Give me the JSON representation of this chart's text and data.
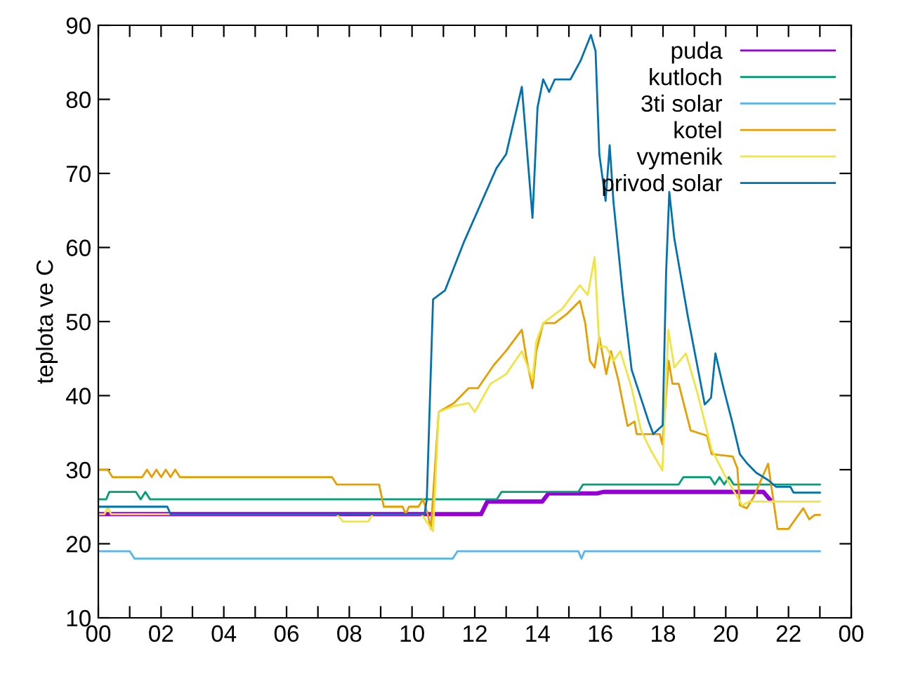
{
  "chart_data": {
    "type": "line",
    "ylabel": "teplota ve C",
    "xlim": [
      0,
      24
    ],
    "ylim": [
      10,
      90
    ],
    "xticks": [
      {
        "value": 0,
        "label": "00"
      },
      {
        "value": 1,
        "label": null
      },
      {
        "value": 2,
        "label": "02"
      },
      {
        "value": 3,
        "label": null
      },
      {
        "value": 4,
        "label": "04"
      },
      {
        "value": 5,
        "label": null
      },
      {
        "value": 6,
        "label": "06"
      },
      {
        "value": 7,
        "label": null
      },
      {
        "value": 8,
        "label": "08"
      },
      {
        "value": 9,
        "label": null
      },
      {
        "value": 10,
        "label": "10"
      },
      {
        "value": 11,
        "label": null
      },
      {
        "value": 12,
        "label": "12"
      },
      {
        "value": 13,
        "label": null
      },
      {
        "value": 14,
        "label": "14"
      },
      {
        "value": 15,
        "label": null
      },
      {
        "value": 16,
        "label": "16"
      },
      {
        "value": 17,
        "label": null
      },
      {
        "value": 18,
        "label": "18"
      },
      {
        "value": 19,
        "label": null
      },
      {
        "value": 20,
        "label": "20"
      },
      {
        "value": 21,
        "label": null
      },
      {
        "value": 22,
        "label": "22"
      },
      {
        "value": 23,
        "label": null
      },
      {
        "value": 24,
        "label": "00"
      }
    ],
    "yticks": [
      10,
      20,
      30,
      40,
      50,
      60,
      70,
      80,
      90
    ],
    "grid": false,
    "legend": "top right",
    "marker": "none",
    "line_style": "solid",
    "series": [
      {
        "name": "puda",
        "color": "#9400d3",
        "x": [
          0,
          12.2,
          12.4,
          14.15,
          14.35,
          15.9,
          16.1,
          21.2,
          21.4
        ],
        "values": [
          24,
          24,
          25.7,
          25.7,
          26.8,
          26.8,
          27,
          27,
          26
        ]
      },
      {
        "name": "kutloch",
        "color": "#009e73",
        "x": [
          0,
          0.25,
          0.35,
          1.2,
          1.35,
          1.5,
          1.65,
          12.7,
          12.85,
          15.3,
          15.45,
          18.5,
          18.65,
          19.5,
          19.65,
          19.8,
          19.95,
          20.1,
          20.25,
          20.4,
          23
        ],
        "values": [
          26,
          26,
          27,
          27,
          26,
          27,
          26,
          26,
          27,
          27,
          28,
          28,
          29,
          29,
          28,
          29,
          28,
          29,
          28,
          28,
          28
        ]
      },
      {
        "name": "3ti solar",
        "color": "#56b4e9",
        "x": [
          0,
          1.0,
          1.15,
          11.3,
          11.45,
          15.3,
          15.4,
          15.5,
          23
        ],
        "values": [
          19,
          19,
          18,
          18,
          19,
          19,
          18,
          19,
          19
        ]
      },
      {
        "name": "kotel",
        "color": "#e69f00",
        "x": [
          0,
          0.3,
          0.45,
          0.6,
          1.4,
          1.55,
          1.7,
          1.85,
          2.0,
          2.15,
          2.3,
          2.45,
          2.6,
          7.45,
          7.6,
          8.95,
          9.1,
          9.7,
          9.8,
          9.9,
          10.2,
          10.35,
          10.5,
          10.6,
          10.85,
          11.34,
          11.8,
          12.1,
          12.6,
          12.99,
          13.5,
          13.66,
          13.84,
          13.96,
          14.18,
          14.55,
          14.93,
          15.35,
          15.52,
          15.67,
          15.82,
          15.97,
          16.19,
          16.34,
          16.57,
          16.72,
          16.87,
          17.09,
          17.16,
          17.9,
          17.98,
          18.18,
          18.3,
          18.5,
          18.88,
          19.4,
          19.55,
          20.22,
          20.37,
          20.45,
          20.67,
          20.9,
          21.35,
          21.5,
          21.65,
          22.0,
          22.47,
          22.66,
          22.84,
          23.0
        ],
        "values": [
          30,
          30,
          29,
          29,
          29,
          30,
          29,
          30,
          29,
          30,
          29,
          30,
          29,
          29,
          28,
          28,
          25,
          25,
          24,
          25,
          25,
          26,
          24,
          22,
          37.8,
          39,
          41,
          41,
          44.1,
          46,
          48.9,
          44.7,
          41,
          46,
          49.8,
          49.8,
          51,
          52.8,
          49.8,
          44.7,
          43.8,
          47.9,
          42.9,
          46,
          42.2,
          39,
          35.9,
          36.5,
          34.8,
          34.8,
          33.4,
          44.7,
          41.6,
          41.6,
          35.3,
          34.6,
          32.1,
          31.8,
          30.2,
          25.2,
          24.8,
          26.4,
          30.8,
          26.4,
          22,
          22,
          24.8,
          23.3,
          23.9,
          23.9
        ]
      },
      {
        "name": "vymenik",
        "color": "#f0e442",
        "x": [
          0,
          0.2,
          0.3,
          0.4,
          7.6,
          7.8,
          8.6,
          8.75,
          10.3,
          10.67,
          10.85,
          11.34,
          11.8,
          12.0,
          12.5,
          13.0,
          13.5,
          13.84,
          13.96,
          14.18,
          14.78,
          15.35,
          15.6,
          15.82,
          15.97,
          16.19,
          16.42,
          16.64,
          17.0,
          17.3,
          17.6,
          17.98,
          18.17,
          18.36,
          18.73,
          19.1,
          19.55,
          20.0,
          20.52,
          20.75,
          23.0
        ],
        "values": [
          24,
          24,
          25,
          24,
          24,
          23,
          23,
          24,
          24,
          21.7,
          37.8,
          38.6,
          39,
          37.8,
          41.6,
          42.9,
          46,
          42.2,
          47.3,
          49.8,
          51.7,
          54.9,
          53.6,
          58.7,
          46.6,
          46.6,
          44.7,
          46,
          41,
          35.3,
          32.7,
          29.9,
          48.9,
          43.8,
          45.7,
          40.3,
          32.7,
          29,
          25.2,
          25.7,
          25.7
        ]
      },
      {
        "name": "privod solar",
        "color": "#0072b2",
        "x": [
          0,
          2.2,
          2.3,
          10.4,
          10.47,
          10.67,
          11.05,
          11.64,
          12.69,
          13.0,
          13.5,
          13.84,
          14.0,
          14.18,
          14.37,
          14.55,
          15.05,
          15.37,
          15.7,
          15.85,
          15.97,
          16.17,
          16.3,
          16.42,
          16.72,
          17.0,
          17.54,
          17.69,
          17.99,
          18.1,
          18.2,
          18.36,
          18.8,
          19.33,
          19.53,
          19.67,
          19.93,
          20.22,
          20.45,
          20.67,
          20.97,
          21.35,
          21.6,
          22.06,
          22.16,
          23.0
        ],
        "values": [
          25,
          25,
          24,
          24,
          26,
          53,
          54.2,
          60.6,
          70.7,
          72.6,
          81.7,
          64,
          78.9,
          82.7,
          81,
          82.7,
          82.7,
          85.2,
          88.7,
          86.5,
          72.6,
          66.3,
          73.8,
          66.2,
          53.6,
          43.5,
          36.5,
          34.8,
          36,
          56.8,
          67.5,
          61.2,
          50.5,
          38.8,
          39.7,
          45.7,
          41,
          36.2,
          32.1,
          30.9,
          29.6,
          28.6,
          27.7,
          27.7,
          26.9,
          26.9
        ]
      }
    ]
  }
}
